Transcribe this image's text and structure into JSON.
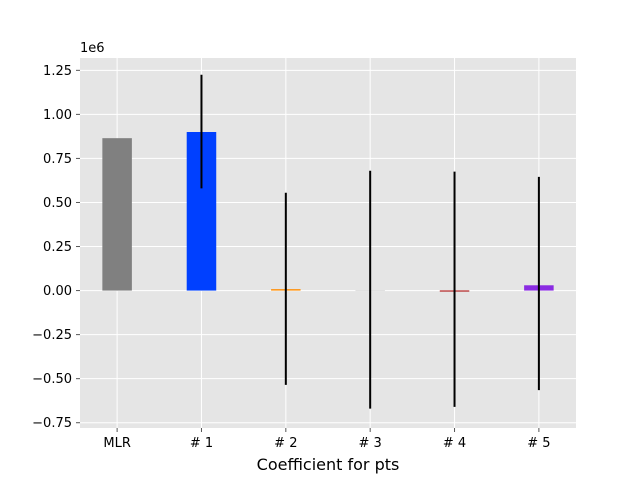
{
  "chart_data": {
    "type": "bar",
    "xlabel": "Coefficient for pts",
    "ylabel": "",
    "y_offset_label": "1e6",
    "categories": [
      "MLR",
      "# 1",
      "# 2",
      "# 3",
      "# 4",
      "# 5"
    ],
    "values": [
      865000,
      900000,
      8000,
      0,
      -5000,
      30000
    ],
    "error_low": [
      null,
      580000,
      -535000,
      -670000,
      -660000,
      -565000
    ],
    "error_high": [
      null,
      1225000,
      555000,
      680000,
      675000,
      645000
    ],
    "colors": [
      "#808080",
      "#0040ff",
      "#ff8c00",
      "#e0e0e0",
      "#b22222",
      "#8a2be2"
    ],
    "ylim": [
      -780000,
      1320000
    ],
    "yticks": [
      -750000,
      -500000,
      -250000,
      0,
      250000,
      500000,
      750000,
      1000000,
      1250000
    ],
    "ytick_labels": [
      "−0.75",
      "−0.50",
      "−0.25",
      "0.00",
      "0.25",
      "0.50",
      "0.75",
      "1.00",
      "1.25"
    ],
    "grid": true,
    "style": "ggplot",
    "background_color": "#e5e5e5",
    "grid_color": "#ffffff",
    "error_color": "#000000"
  }
}
